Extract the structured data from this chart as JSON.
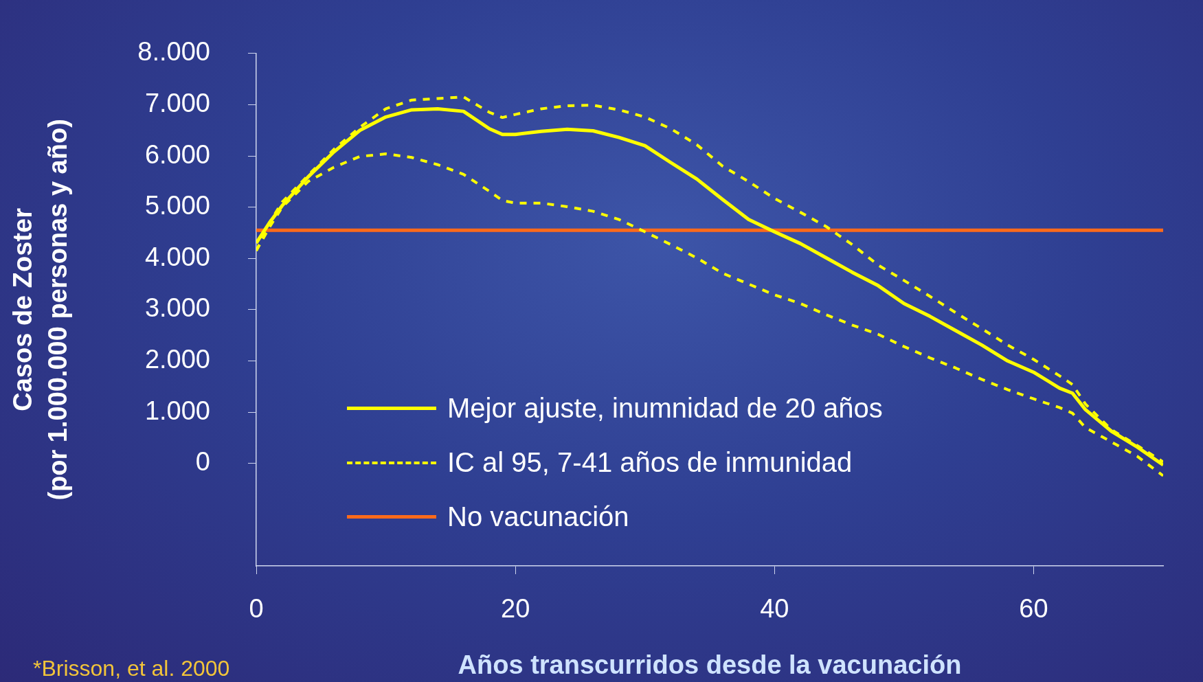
{
  "chart_data": {
    "type": "line",
    "xlabel": "Años transcurridos desde la vacunación",
    "ylabel": "Casos de Zoster\n(por 1.000.000 personas y año)",
    "xlim": [
      0,
      70
    ],
    "xticks": [
      0,
      20,
      40,
      60
    ],
    "ylim": [
      -2000,
      8000
    ],
    "yticks": [
      0,
      {
        "value": 1000,
        "label": "1.000"
      },
      {
        "value": 2000,
        "label": "2.000"
      },
      {
        "value": 3000,
        "label": "3.000"
      },
      {
        "value": 4000,
        "label": "4.000"
      },
      {
        "value": 5000,
        "label": "5.000"
      },
      {
        "value": 6000,
        "label": "6.000"
      },
      {
        "value": 7000,
        "label": "7.000"
      },
      {
        "value": 8000,
        "label": "8..000"
      }
    ],
    "grid": false,
    "legend": "bottom",
    "marker": "none",
    "annotations": [
      "*Brisson, et al. 2000"
    ],
    "series": [
      {
        "name": "Mejor ajuste, inumnidad de 20 años",
        "color": "#ffff00",
        "line_style": "solid",
        "x": [
          0,
          1,
          2,
          4,
          6,
          8,
          10,
          12,
          14,
          16,
          18,
          19,
          20,
          22,
          24,
          26,
          28,
          30,
          32,
          34,
          36,
          38,
          40,
          42,
          44,
          46,
          48,
          50,
          52,
          54,
          56,
          58,
          60,
          62,
          63,
          64,
          66,
          68,
          70
        ],
        "values": [
          4300,
          4690,
          5030,
          5590,
          6080,
          6500,
          6760,
          6900,
          6920,
          6870,
          6530,
          6420,
          6420,
          6480,
          6520,
          6490,
          6360,
          6200,
          5870,
          5550,
          5150,
          4760,
          4520,
          4290,
          4010,
          3730,
          3470,
          3120,
          2870,
          2590,
          2310,
          2000,
          1780,
          1470,
          1370,
          1050,
          630,
          320,
          -30
        ]
      },
      {
        "name": "IC al 95, 7-41 años de inmunidad",
        "color": "#ffff00",
        "line_style": "dashed",
        "x": [
          0,
          1,
          2,
          4,
          6,
          8,
          10,
          12,
          14,
          16,
          18,
          19,
          20,
          22,
          24,
          26,
          28,
          30,
          32,
          34,
          36,
          38,
          40,
          42,
          44,
          46,
          48,
          50,
          52,
          54,
          56,
          58,
          60,
          62,
          63,
          64,
          66,
          68,
          70
        ],
        "values": [
          4150,
          4690,
          5100,
          5620,
          6130,
          6560,
          6920,
          7090,
          7120,
          7150,
          6850,
          6750,
          6810,
          6920,
          6980,
          6990,
          6900,
          6760,
          6530,
          6220,
          5800,
          5500,
          5170,
          4900,
          4620,
          4270,
          3870,
          3570,
          3260,
          2940,
          2630,
          2310,
          2030,
          1710,
          1540,
          1160,
          660,
          350,
          30
        ]
      },
      {
        "color": "#ffff00",
        "line_style": "dashed",
        "x": [
          0,
          1,
          2,
          4,
          6,
          8,
          10,
          12,
          14,
          16,
          18,
          19,
          20,
          22,
          24,
          26,
          28,
          30,
          32,
          34,
          36,
          38,
          40,
          42,
          44,
          46,
          48,
          50,
          52,
          54,
          56,
          58,
          60,
          62,
          63,
          64,
          66,
          68,
          70
        ],
        "values": [
          4150,
          4600,
          5000,
          5500,
          5780,
          5990,
          6040,
          5970,
          5830,
          5640,
          5310,
          5130,
          5080,
          5080,
          5010,
          4920,
          4760,
          4520,
          4270,
          4010,
          3710,
          3500,
          3290,
          3120,
          2900,
          2700,
          2520,
          2280,
          2060,
          1860,
          1640,
          1440,
          1260,
          1090,
          980,
          700,
          420,
          140,
          -240
        ]
      },
      {
        "name": "No vacunación",
        "color": "#ff6a1a",
        "line_style": "solid",
        "x": [
          0,
          70
        ],
        "values": [
          4550,
          4550
        ]
      }
    ]
  }
}
